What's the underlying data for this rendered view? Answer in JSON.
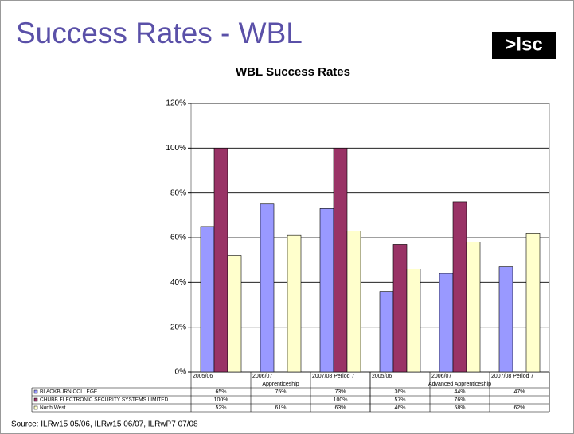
{
  "header": {
    "title": "Success Rates - WBL",
    "logo": ">lsc"
  },
  "chart_data": {
    "type": "bar",
    "title": "WBL Success Rates",
    "groups": [
      {
        "name": "Apprenticeship",
        "categories": [
          "2005/06",
          "2006/07",
          "2007/08 Period 7"
        ]
      },
      {
        "name": "Advanced Apprenticeship",
        "categories": [
          "2005/06",
          "2006/07",
          "2007/08 Period 7"
        ]
      }
    ],
    "series": [
      {
        "name": "BLACKBURN COLLEGE",
        "color": "#9999ff",
        "values": [
          65,
          75,
          73,
          36,
          44,
          47
        ],
        "value_labels": [
          "65%",
          "75%",
          "73%",
          "36%",
          "44%",
          "47%"
        ]
      },
      {
        "name": "CHUBB ELECTRONIC SECURITY SYSTEMS LIMITED",
        "color": "#993366",
        "values": [
          100,
          null,
          100,
          57,
          76,
          null
        ],
        "value_labels": [
          "100%",
          null,
          "100%",
          "57%",
          "76%",
          null
        ]
      },
      {
        "name": "North West",
        "color": "#ffffcc",
        "values": [
          52,
          61,
          63,
          46,
          58,
          62
        ],
        "value_labels": [
          "52%",
          "61%",
          "63%",
          "46%",
          "58%",
          "62%"
        ]
      }
    ],
    "ylim": [
      0,
      120
    ],
    "yticks": [
      {
        "value": 0,
        "label": "0%"
      },
      {
        "value": 20,
        "label": "20%"
      },
      {
        "value": 40,
        "label": "40%"
      },
      {
        "value": 60,
        "label": "60%"
      },
      {
        "value": 80,
        "label": "80%"
      },
      {
        "value": 100,
        "label": "100%"
      },
      {
        "value": 120,
        "label": "120%"
      }
    ],
    "grid": true
  },
  "footer": {
    "source": "Source: ILRw15 05/06, ILRw15 06/07, ILRwP7 07/08"
  }
}
